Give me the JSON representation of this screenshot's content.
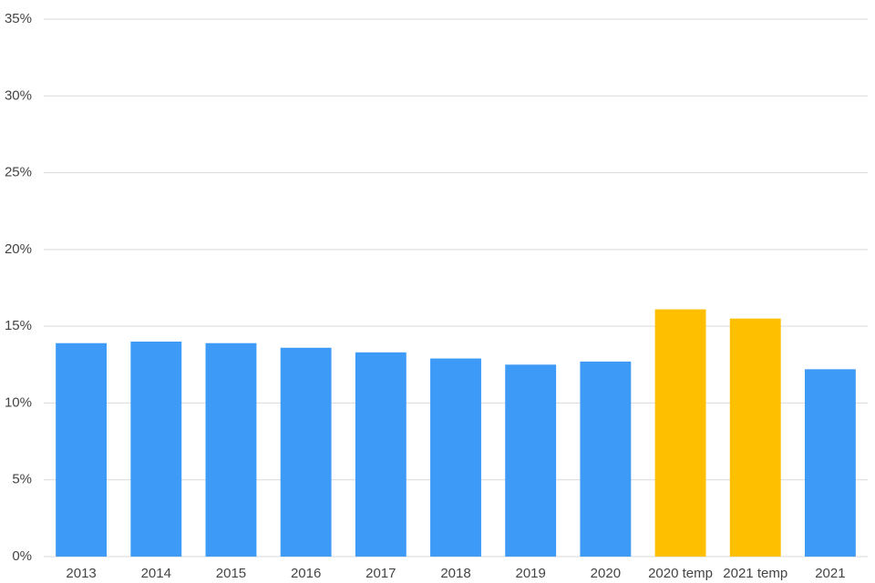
{
  "chart_data": {
    "type": "bar",
    "categories": [
      "2013",
      "2014",
      "2015",
      "2016",
      "2017",
      "2018",
      "2019",
      "2020",
      "2020 temp",
      "2021 temp",
      "2021"
    ],
    "values": [
      13.9,
      14.0,
      13.9,
      13.6,
      13.3,
      12.9,
      12.5,
      12.7,
      16.1,
      15.5,
      12.2
    ],
    "colors": [
      "#3d9bf7",
      "#3d9bf7",
      "#3d9bf7",
      "#3d9bf7",
      "#3d9bf7",
      "#3d9bf7",
      "#3d9bf7",
      "#3d9bf7",
      "#fdbf00",
      "#fdbf00",
      "#3d9bf7"
    ],
    "ylim": [
      0,
      35
    ],
    "yticks": [
      {
        "value": 0,
        "label": "0%"
      },
      {
        "value": 5,
        "label": "5%"
      },
      {
        "value": 10,
        "label": "10%"
      },
      {
        "value": 15,
        "label": "15%"
      },
      {
        "value": 20,
        "label": "20%"
      },
      {
        "value": 25,
        "label": "25%"
      },
      {
        "value": 30,
        "label": "30%"
      },
      {
        "value": 35,
        "label": "35%"
      }
    ],
    "grid": true
  }
}
